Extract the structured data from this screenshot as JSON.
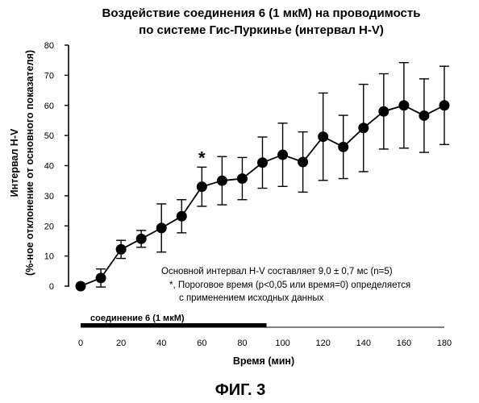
{
  "chart_data": {
    "type": "line",
    "title_line1": "Воздействие соединения 6 (1 мкМ) на проводимость",
    "title_line2": "по системе Гис-Пуркинье (интервал Н-V)",
    "ylabel_line1": "Интервал Н-V",
    "ylabel_line2": "(%-ное отклонение от основного показателя)",
    "xlabel": "Время (мин)",
    "xlim": [
      0,
      180
    ],
    "ylim": [
      0,
      80
    ],
    "xticks": [
      0,
      20,
      40,
      60,
      80,
      100,
      120,
      140,
      160,
      180
    ],
    "yticks": [
      0,
      10,
      20,
      30,
      40,
      50,
      60,
      70,
      80
    ],
    "x": [
      0,
      10,
      20,
      30,
      40,
      50,
      60,
      70,
      80,
      90,
      100,
      110,
      120,
      130,
      140,
      150,
      160,
      170,
      180
    ],
    "y": [
      0,
      2.7,
      12.2,
      15.7,
      19.3,
      23.2,
      33.0,
      35.0,
      35.7,
      41.0,
      43.6,
      41.2,
      49.6,
      46.2,
      52.5,
      58.0,
      60.0,
      56.6,
      60.0
    ],
    "err": [
      0,
      3.0,
      3.0,
      2.8,
      8.0,
      5.5,
      6.5,
      8.0,
      7.0,
      8.5,
      10.5,
      10.0,
      14.5,
      10.5,
      14.5,
      12.5,
      14.2,
      12.2,
      13.0
    ],
    "significance_marker": {
      "x": 60,
      "symbol": "*"
    },
    "annotation_line1": "Основной интервал Н-V составляет 9,0 ± 0,7 мс (n=5)",
    "annotation_line2": "*, Пороговое время (р<0,05 или время=0) определяется",
    "annotation_line3": "с применением исходных данных",
    "treatment_bar": {
      "label": "соединение 6 (1  мкМ)",
      "start": 0,
      "end": 92
    }
  },
  "figure_label": "ФИГ. 3"
}
